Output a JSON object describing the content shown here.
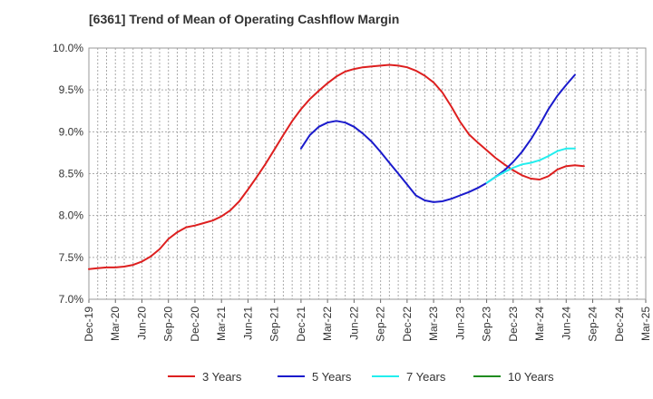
{
  "chart_data": {
    "type": "line",
    "title": "[6361]  Trend of Mean of Operating Cashflow Margin",
    "xlabel": "",
    "ylabel": "",
    "ylim": [
      7.0,
      10.0
    ],
    "y_ticks": [
      "10.0%",
      "9.5%",
      "9.0%",
      "8.5%",
      "8.0%",
      "7.5%",
      "7.0%"
    ],
    "y_tick_values": [
      10.0,
      9.5,
      9.0,
      8.5,
      8.0,
      7.5,
      7.0
    ],
    "x_ticks": [
      "Dec-19",
      "Mar-20",
      "Jun-20",
      "Sep-20",
      "Dec-20",
      "Mar-21",
      "Jun-21",
      "Sep-21",
      "Dec-21",
      "Mar-22",
      "Jun-22",
      "Sep-22",
      "Dec-22",
      "Mar-23",
      "Jun-23",
      "Sep-23",
      "Dec-23",
      "Mar-24",
      "Jun-24",
      "Sep-24",
      "Dec-24",
      "Mar-25"
    ],
    "x_range_quarters": [
      0,
      21
    ],
    "grid": true,
    "legend_position": "bottom",
    "series": [
      {
        "name": "3 Years",
        "color": "#dd1f1f",
        "points": [
          [
            0,
            7.36
          ],
          [
            0.33,
            7.37
          ],
          [
            0.67,
            7.38
          ],
          [
            1,
            7.38
          ],
          [
            1.33,
            7.39
          ],
          [
            1.67,
            7.41
          ],
          [
            2,
            7.45
          ],
          [
            2.33,
            7.51
          ],
          [
            2.67,
            7.6
          ],
          [
            3,
            7.72
          ],
          [
            3.33,
            7.8
          ],
          [
            3.67,
            7.86
          ],
          [
            4,
            7.88
          ],
          [
            4.33,
            7.91
          ],
          [
            4.67,
            7.94
          ],
          [
            5,
            7.99
          ],
          [
            5.33,
            8.06
          ],
          [
            5.67,
            8.17
          ],
          [
            6,
            8.31
          ],
          [
            6.33,
            8.46
          ],
          [
            6.67,
            8.62
          ],
          [
            7,
            8.79
          ],
          [
            7.33,
            8.96
          ],
          [
            7.67,
            9.13
          ],
          [
            8,
            9.27
          ],
          [
            8.33,
            9.39
          ],
          [
            8.67,
            9.49
          ],
          [
            9,
            9.58
          ],
          [
            9.33,
            9.66
          ],
          [
            9.67,
            9.72
          ],
          [
            10,
            9.75
          ],
          [
            10.33,
            9.77
          ],
          [
            10.67,
            9.78
          ],
          [
            11,
            9.79
          ],
          [
            11.33,
            9.8
          ],
          [
            11.67,
            9.79
          ],
          [
            12,
            9.77
          ],
          [
            12.33,
            9.73
          ],
          [
            12.67,
            9.67
          ],
          [
            13,
            9.59
          ],
          [
            13.33,
            9.47
          ],
          [
            13.67,
            9.3
          ],
          [
            14,
            9.12
          ],
          [
            14.33,
            8.97
          ],
          [
            14.67,
            8.87
          ],
          [
            15,
            8.78
          ],
          [
            15.33,
            8.69
          ],
          [
            15.67,
            8.61
          ],
          [
            16,
            8.54
          ],
          [
            16.33,
            8.48
          ],
          [
            16.67,
            8.44
          ],
          [
            17,
            8.43
          ],
          [
            17.33,
            8.47
          ],
          [
            17.67,
            8.55
          ],
          [
            18,
            8.59
          ],
          [
            18.33,
            8.6
          ],
          [
            18.67,
            8.59
          ]
        ]
      },
      {
        "name": "5 Years",
        "color": "#1a1acc",
        "points": [
          [
            8,
            8.8
          ],
          [
            8.33,
            8.96
          ],
          [
            8.67,
            9.06
          ],
          [
            9,
            9.11
          ],
          [
            9.33,
            9.13
          ],
          [
            9.67,
            9.11
          ],
          [
            10,
            9.06
          ],
          [
            10.33,
            8.98
          ],
          [
            10.67,
            8.88
          ],
          [
            11,
            8.76
          ],
          [
            11.33,
            8.63
          ],
          [
            11.67,
            8.5
          ],
          [
            12,
            8.37
          ],
          [
            12.33,
            8.24
          ],
          [
            12.67,
            8.18
          ],
          [
            13,
            8.16
          ],
          [
            13.33,
            8.17
          ],
          [
            13.67,
            8.2
          ],
          [
            14,
            8.24
          ],
          [
            14.33,
            8.28
          ],
          [
            14.67,
            8.33
          ],
          [
            15,
            8.39
          ],
          [
            15.33,
            8.46
          ],
          [
            15.67,
            8.54
          ],
          [
            16,
            8.64
          ],
          [
            16.33,
            8.76
          ],
          [
            16.67,
            8.91
          ],
          [
            17,
            9.08
          ],
          [
            17.33,
            9.27
          ],
          [
            17.67,
            9.43
          ],
          [
            18,
            9.56
          ],
          [
            18.33,
            9.68
          ]
        ]
      },
      {
        "name": "7 Years",
        "color": "#22eeee",
        "points": [
          [
            15,
            8.39
          ],
          [
            15.33,
            8.46
          ],
          [
            15.67,
            8.52
          ],
          [
            16,
            8.57
          ],
          [
            16.33,
            8.61
          ],
          [
            16.67,
            8.63
          ],
          [
            17,
            8.66
          ],
          [
            17.33,
            8.71
          ],
          [
            17.67,
            8.77
          ],
          [
            18,
            8.8
          ],
          [
            18.33,
            8.8
          ]
        ]
      },
      {
        "name": "10 Years",
        "color": "#1f8c1f",
        "points": []
      }
    ]
  }
}
